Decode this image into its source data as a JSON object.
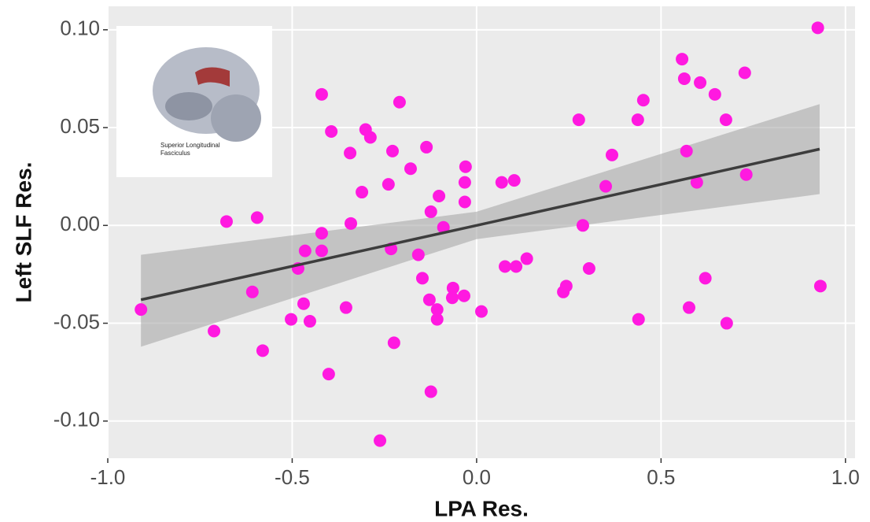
{
  "chart_data": {
    "type": "scatter",
    "x_label": "LPA Res.",
    "y_label": "Left SLF Res.",
    "inset_text": [
      "Superior Longitudinal",
      "Fasciculus"
    ],
    "color": "#ff19e0",
    "x": [
      0.925,
      0.932,
      -0.91,
      -0.712,
      -0.678,
      -0.595,
      -0.608,
      -0.58,
      -0.42,
      -0.394,
      -0.301,
      -0.288,
      -0.343,
      -0.209,
      -0.228,
      -0.239,
      -0.311,
      -0.341,
      -0.42,
      -0.42,
      -0.465,
      -0.484,
      -0.469,
      -0.503,
      -0.452,
      -0.354,
      -0.401,
      -0.232,
      -0.224,
      -0.262,
      -0.179,
      -0.136,
      -0.102,
      -0.124,
      -0.09,
      -0.158,
      -0.147,
      -0.128,
      -0.107,
      -0.107,
      -0.124,
      -0.064,
      -0.066,
      -0.034,
      -0.03,
      -0.032,
      -0.032,
      0.013,
      0.068,
      0.102,
      0.077,
      0.107,
      0.136,
      0.235,
      0.243,
      0.277,
      0.288,
      0.305,
      0.35,
      0.367,
      0.437,
      0.452,
      0.439,
      0.557,
      0.563,
      0.569,
      0.576,
      0.606,
      0.597,
      0.62,
      0.646,
      0.676,
      0.678,
      0.727,
      0.731
    ],
    "values": [
      0.101,
      -0.031,
      -0.043,
      -0.054,
      0.002,
      0.004,
      -0.034,
      -0.064,
      0.067,
      0.048,
      0.049,
      0.045,
      0.037,
      0.063,
      0.038,
      0.021,
      0.017,
      0.001,
      -0.004,
      -0.013,
      -0.013,
      -0.022,
      -0.04,
      -0.048,
      -0.049,
      -0.042,
      -0.076,
      -0.012,
      -0.06,
      -0.11,
      0.029,
      0.04,
      0.015,
      0.007,
      -0.001,
      -0.015,
      -0.027,
      -0.038,
      -0.043,
      -0.048,
      -0.085,
      -0.032,
      -0.037,
      -0.036,
      0.03,
      0.022,
      0.012,
      -0.044,
      0.022,
      0.023,
      -0.021,
      -0.021,
      -0.017,
      -0.034,
      -0.031,
      0.054,
      0.0,
      -0.022,
      0.02,
      0.036,
      0.054,
      0.064,
      -0.048,
      0.085,
      0.075,
      0.038,
      -0.042,
      0.073,
      0.022,
      -0.027,
      0.067,
      0.054,
      -0.05,
      0.078,
      0.026
    ],
    "fit": {
      "x": [
        -0.91,
        0,
        0.93
      ],
      "values": [
        -0.038,
        0.0,
        0.039
      ],
      "upper": [
        -0.015,
        0.007,
        0.062
      ],
      "lower": [
        -0.062,
        -0.007,
        0.016
      ],
      "color": "#3d3d3d",
      "band_color": "#a8a8a8"
    },
    "xlim": [
      -1.0,
      1.026
    ],
    "ylim": [
      -0.119,
      0.112
    ],
    "xticks": [
      {
        "value": -1.0,
        "label": "-1.0"
      },
      {
        "value": -0.5,
        "label": "-0.5"
      },
      {
        "value": 0,
        "label": "0.0"
      },
      {
        "value": 0.5,
        "label": "0.5"
      },
      {
        "value": 1.0,
        "label": "1.0"
      }
    ],
    "yticks": [
      {
        "value": -0.1,
        "label": "-0.10"
      },
      {
        "value": -0.05,
        "label": "-0.05"
      },
      {
        "value": 0,
        "label": "0.00"
      },
      {
        "value": 0.05,
        "label": "0.05"
      },
      {
        "value": 0.1,
        "label": "0.10"
      }
    ],
    "grid": true
  }
}
